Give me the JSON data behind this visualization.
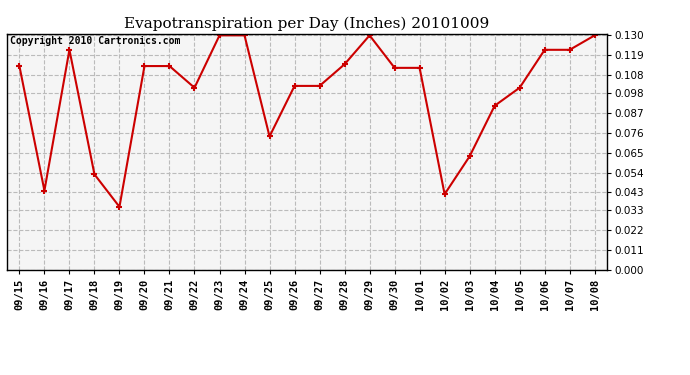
{
  "title": "Evapotranspiration per Day (Inches) 20101009",
  "copyright_text": "Copyright 2010 Cartronics.com",
  "dates": [
    "09/15",
    "09/16",
    "09/17",
    "09/18",
    "09/19",
    "09/20",
    "09/21",
    "09/22",
    "09/23",
    "09/24",
    "09/25",
    "09/26",
    "09/27",
    "09/28",
    "09/29",
    "09/30",
    "10/01",
    "10/02",
    "10/03",
    "10/04",
    "10/05",
    "10/06",
    "10/07",
    "10/08"
  ],
  "values": [
    0.113,
    0.044,
    0.122,
    0.053,
    0.035,
    0.113,
    0.113,
    0.101,
    0.13,
    0.13,
    0.074,
    0.102,
    0.102,
    0.114,
    0.13,
    0.112,
    0.112,
    0.042,
    0.063,
    0.091,
    0.101,
    0.122,
    0.122,
    0.13
  ],
  "ylim": [
    0.0,
    0.1309
  ],
  "yticks": [
    0.0,
    0.011,
    0.022,
    0.033,
    0.043,
    0.054,
    0.065,
    0.076,
    0.087,
    0.098,
    0.108,
    0.119,
    0.13
  ],
  "line_color": "#cc0000",
  "marker": "+",
  "marker_size": 5,
  "marker_lw": 1.5,
  "line_width": 1.5,
  "bg_color": "#ffffff",
  "plot_bg_color": "#f5f5f5",
  "grid_color": "#bbbbbb",
  "grid_linestyle": "--",
  "title_fontsize": 11,
  "copyright_fontsize": 7,
  "tick_labelsize": 7.5,
  "ytick_labelsize": 7.5
}
